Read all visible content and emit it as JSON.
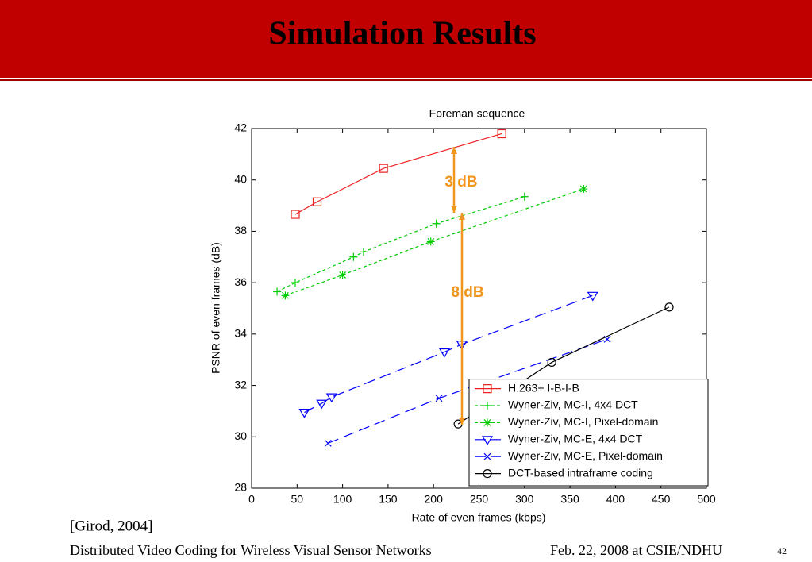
{
  "slide": {
    "title": "Simulation Results",
    "citation": "[Girod, 2004]",
    "footer_left": "Distributed Video Coding for Wireless Visual Sensor Networks",
    "footer_date": "Feb. 22, 2008 at CSIE/NDHU",
    "page_number": "42"
  },
  "chart_data": {
    "type": "line",
    "title": "Foreman sequence",
    "x_label": "Rate of even frames (kbps)",
    "y_label": "PSNR of even frames (dB)",
    "xlim": [
      0,
      500
    ],
    "xticks": [
      0,
      50,
      100,
      150,
      200,
      250,
      300,
      350,
      400,
      450,
      500
    ],
    "ylim": [
      28,
      42
    ],
    "yticks": [
      28,
      30,
      32,
      34,
      36,
      38,
      40,
      42
    ],
    "legend": "lower right",
    "annotations": [
      "3 dB",
      "8 dB"
    ],
    "series": [
      {
        "name": "H.263+ I-B-I-B",
        "color": "#ee2222",
        "marker": "square",
        "linestyle": "solid",
        "x": [
          48,
          72,
          145,
          275
        ],
        "values": [
          38.66,
          39.15,
          40.45,
          41.8
        ]
      },
      {
        "name": "Wyner-Ziv, MC-I, 4x4 DCT",
        "color": "#00cc00",
        "marker": "plus",
        "linestyle": "dotted",
        "x": [
          28,
          48,
          112,
          123,
          203,
          300
        ],
        "values": [
          35.65,
          36.0,
          37.0,
          37.2,
          38.3,
          39.35
        ]
      },
      {
        "name": "Wyner-Ziv, MC-I, Pixel-domain",
        "color": "#00cc00",
        "marker": "star",
        "linestyle": "dotted",
        "x": [
          37,
          100,
          197,
          365
        ],
        "values": [
          35.5,
          36.3,
          37.6,
          39.65
        ]
      },
      {
        "name": "Wyner-Ziv, MC-E, 4x4 DCT",
        "color": "#0000ff",
        "marker": "triangle-down",
        "linestyle": "dashed",
        "x": [
          58,
          77,
          88,
          212,
          231,
          375
        ],
        "values": [
          30.95,
          31.3,
          31.55,
          33.3,
          33.6,
          35.5
        ]
      },
      {
        "name": "Wyner-Ziv, MC-E, Pixel-domain",
        "color": "#0000ff",
        "marker": "x",
        "linestyle": "dashed",
        "x": [
          84,
          206,
          391
        ],
        "values": [
          29.75,
          31.5,
          33.8
        ]
      },
      {
        "name": "DCT-based intraframe coding",
        "color": "#000000",
        "marker": "circle",
        "linestyle": "solid",
        "x": [
          227,
          330,
          459
        ],
        "values": [
          30.5,
          32.9,
          35.05
        ]
      }
    ]
  }
}
